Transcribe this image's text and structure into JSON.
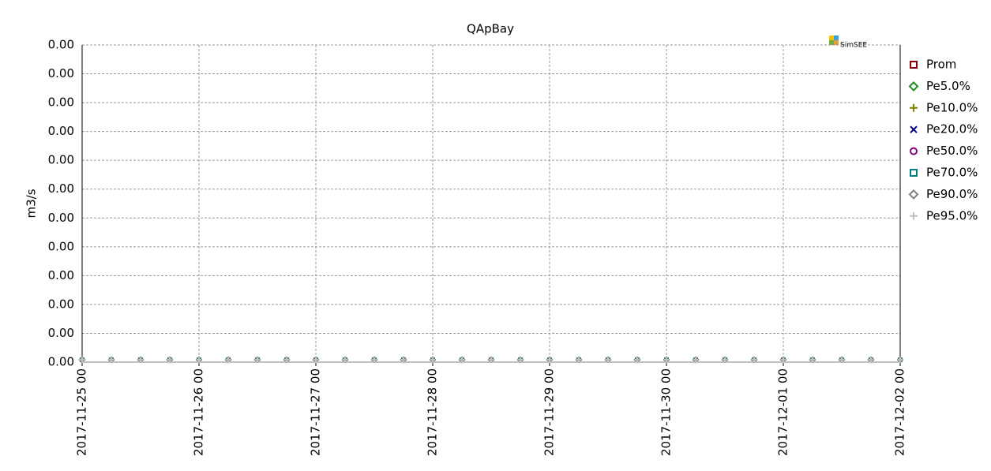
{
  "chart_data": {
    "type": "line",
    "title": "QApBay",
    "y_label": "m3/s",
    "logo": "SimSEE",
    "x": [
      "2017-11-25 00",
      "2017-11-25 06",
      "2017-11-25 12",
      "2017-11-25 18",
      "2017-11-26 00",
      "2017-11-26 06",
      "2017-11-26 12",
      "2017-11-26 18",
      "2017-11-27 00",
      "2017-11-27 06",
      "2017-11-27 12",
      "2017-11-27 18",
      "2017-11-28 00",
      "2017-11-28 06",
      "2017-11-28 12",
      "2017-11-28 18",
      "2017-11-29 00",
      "2017-11-29 06",
      "2017-11-29 12",
      "2017-11-29 18",
      "2017-11-30 00",
      "2017-11-30 06",
      "2017-11-30 12",
      "2017-11-30 18",
      "2017-12-01 00",
      "2017-12-01 06",
      "2017-12-01 12",
      "2017-12-01 18",
      "2017-12-02 00"
    ],
    "xlim": [
      "2017-11-25 00",
      "2017-12-02 00"
    ],
    "xticks": [
      "2017-11-25 00",
      "2017-11-26 00",
      "2017-11-27 00",
      "2017-11-28 00",
      "2017-11-29 00",
      "2017-11-30 00",
      "2017-12-01 00",
      "2017-12-02 00"
    ],
    "ylim": [
      0,
      0.0011
    ],
    "yticks": [
      {
        "value": 0,
        "label": "0.00"
      },
      {
        "value": 0.0001,
        "label": "0.00"
      },
      {
        "value": 0.0002,
        "label": "0.00"
      },
      {
        "value": 0.0003,
        "label": "0.00"
      },
      {
        "value": 0.0004,
        "label": "0.00"
      },
      {
        "value": 0.0005,
        "label": "0.00"
      },
      {
        "value": 0.0006,
        "label": "0.00"
      },
      {
        "value": 0.0007,
        "label": "0.00"
      },
      {
        "value": 0.0008,
        "label": "0.00"
      },
      {
        "value": 0.0009,
        "label": "0.00"
      },
      {
        "value": 0.001,
        "label": "0.00"
      },
      {
        "value": 0.0011,
        "label": "0.00"
      }
    ],
    "grid": true,
    "legend": "right",
    "series": [
      {
        "name": "Prom",
        "color": "#8b0000",
        "marker": "square",
        "values": [
          0,
          0,
          0,
          0,
          0,
          0,
          0,
          0,
          0,
          0,
          0,
          0,
          0,
          0,
          0,
          0,
          0,
          0,
          0,
          0,
          0,
          0,
          0,
          0,
          0,
          0,
          0,
          0,
          0
        ]
      },
      {
        "name": "Pe5.0%",
        "color": "#1e8b1e",
        "marker": "diamond",
        "values": [
          0,
          0,
          0,
          0,
          0,
          0,
          0,
          0,
          0,
          0,
          0,
          0,
          0,
          0,
          0,
          0,
          0,
          0,
          0,
          0,
          0,
          0,
          0,
          0,
          0,
          0,
          0,
          0,
          0
        ]
      },
      {
        "name": "Pe10.0%",
        "color": "#808000",
        "marker": "plus",
        "values": [
          0,
          0,
          0,
          0,
          0,
          0,
          0,
          0,
          0,
          0,
          0,
          0,
          0,
          0,
          0,
          0,
          0,
          0,
          0,
          0,
          0,
          0,
          0,
          0,
          0,
          0,
          0,
          0,
          0
        ]
      },
      {
        "name": "Pe20.0%",
        "color": "#000080",
        "marker": "cross",
        "values": [
          0,
          0,
          0,
          0,
          0,
          0,
          0,
          0,
          0,
          0,
          0,
          0,
          0,
          0,
          0,
          0,
          0,
          0,
          0,
          0,
          0,
          0,
          0,
          0,
          0,
          0,
          0,
          0,
          0
        ]
      },
      {
        "name": "Pe50.0%",
        "color": "#800080",
        "marker": "circle",
        "values": [
          0,
          0,
          0,
          0,
          0,
          0,
          0,
          0,
          0,
          0,
          0,
          0,
          0,
          0,
          0,
          0,
          0,
          0,
          0,
          0,
          0,
          0,
          0,
          0,
          0,
          0,
          0,
          0,
          0
        ]
      },
      {
        "name": "Pe70.0%",
        "color": "#008080",
        "marker": "square",
        "values": [
          0,
          0,
          0,
          0,
          0,
          0,
          0,
          0,
          0,
          0,
          0,
          0,
          0,
          0,
          0,
          0,
          0,
          0,
          0,
          0,
          0,
          0,
          0,
          0,
          0,
          0,
          0,
          0,
          0
        ]
      },
      {
        "name": "Pe90.0%",
        "color": "#808080",
        "marker": "diamond",
        "values": [
          0,
          0,
          0,
          0,
          0,
          0,
          0,
          0,
          0,
          0,
          0,
          0,
          0,
          0,
          0,
          0,
          0,
          0,
          0,
          0,
          0,
          0,
          0,
          0,
          0,
          0,
          0,
          0,
          0
        ]
      },
      {
        "name": "Pe95.0%",
        "color": "#c0c0c0",
        "marker": "plus",
        "values": [
          0,
          0,
          0,
          0,
          0,
          0,
          0,
          0,
          0,
          0,
          0,
          0,
          0,
          0,
          0,
          0,
          0,
          0,
          0,
          0,
          0,
          0,
          0,
          0,
          0,
          0,
          0,
          0,
          0
        ]
      }
    ]
  }
}
